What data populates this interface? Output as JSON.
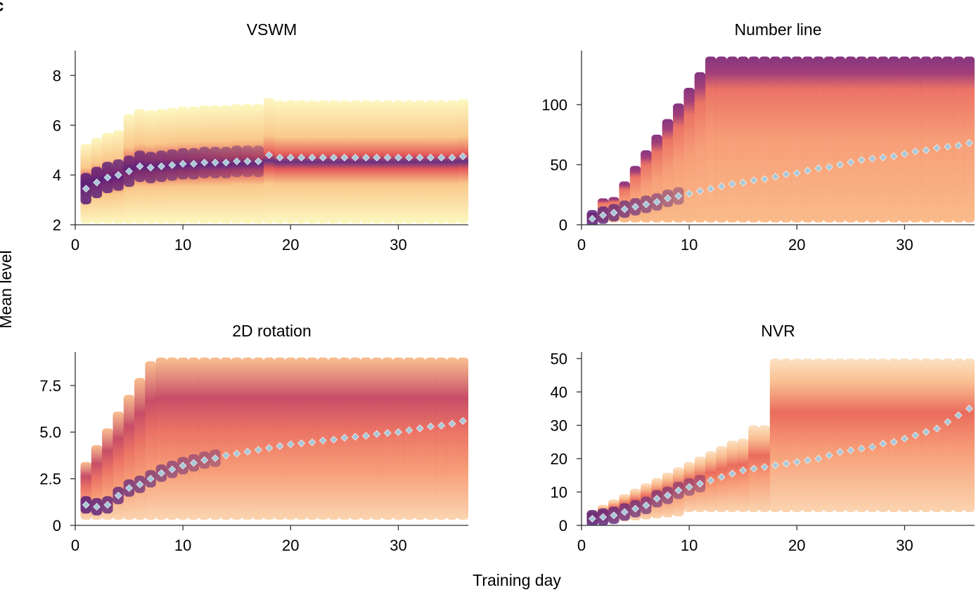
{
  "figure": {
    "panel_letter": "c",
    "ylabel": "Mean level",
    "xlabel": "Training day"
  },
  "colors": {
    "mean_marker": "#a8c8d8",
    "density_low": "#fcf6b4",
    "density_mid": "#f7834f",
    "density_high": "#5a1f7a",
    "density_peak": "#0d0829"
  },
  "chart_data": [
    {
      "type": "scatter",
      "title": "VSWM",
      "xlim": [
        0,
        36.5
      ],
      "ylim": [
        2,
        9
      ],
      "xticks": [
        0,
        10,
        20,
        30
      ],
      "yticks": [
        2,
        4,
        6,
        8
      ],
      "ytick_labels": [
        "2",
        "4",
        "6",
        "8"
      ],
      "series": [
        {
          "x": [
            1,
            2,
            3,
            4,
            5,
            6,
            7,
            8,
            9,
            10,
            11,
            12,
            13,
            14,
            15,
            16,
            17,
            18,
            19,
            20,
            21,
            22,
            23,
            24,
            25,
            26,
            27,
            28,
            29,
            30,
            31,
            32,
            33,
            34,
            35,
            36
          ],
          "values": [
            3.45,
            3.7,
            3.9,
            4.0,
            4.15,
            4.35,
            4.3,
            4.35,
            4.4,
            4.45,
            4.45,
            4.5,
            4.5,
            4.5,
            4.55,
            4.55,
            4.55,
            4.8,
            4.7,
            4.7,
            4.7,
            4.7,
            4.7,
            4.7,
            4.7,
            4.7,
            4.7,
            4.7,
            4.7,
            4.7,
            4.7,
            4.7,
            4.7,
            4.7,
            4.7,
            4.75
          ]
        }
      ]
    },
    {
      "type": "scatter",
      "title": "Number line",
      "xlim": [
        0,
        36.5
      ],
      "ylim": [
        0,
        145
      ],
      "xticks": [
        0,
        10,
        20,
        30
      ],
      "yticks": [
        0,
        50,
        100
      ],
      "ytick_labels": [
        "0",
        "50",
        "100"
      ],
      "series": [
        {
          "x": [
            1,
            2,
            3,
            4,
            5,
            6,
            7,
            8,
            9,
            10,
            11,
            12,
            13,
            14,
            15,
            16,
            17,
            18,
            19,
            20,
            21,
            22,
            23,
            24,
            25,
            26,
            27,
            28,
            29,
            30,
            31,
            32,
            33,
            34,
            35,
            36
          ],
          "values": [
            5,
            8,
            10,
            13,
            15,
            17,
            19,
            22,
            24,
            26,
            28,
            30,
            32,
            34,
            35,
            37,
            38,
            40,
            42,
            43,
            45,
            47,
            48,
            50,
            52,
            54,
            55,
            56,
            57,
            59,
            61,
            62,
            64,
            65,
            66,
            68
          ]
        }
      ]
    },
    {
      "type": "scatter",
      "title": "2D rotation",
      "xlim": [
        0,
        36.5
      ],
      "ylim": [
        0,
        9.3
      ],
      "xticks": [
        0,
        10,
        20,
        30
      ],
      "yticks": [
        0,
        2.5,
        5.0,
        7.5
      ],
      "ytick_labels": [
        "0",
        "2.5",
        "5.0",
        "7.5"
      ],
      "series": [
        {
          "x": [
            1,
            2,
            3,
            4,
            5,
            6,
            7,
            8,
            9,
            10,
            11,
            12,
            13,
            14,
            15,
            16,
            17,
            18,
            19,
            20,
            21,
            22,
            23,
            24,
            25,
            26,
            27,
            28,
            29,
            30,
            31,
            32,
            33,
            34,
            35,
            36
          ],
          "values": [
            1.1,
            1.0,
            1.1,
            1.6,
            2.0,
            2.2,
            2.5,
            2.8,
            3.0,
            3.2,
            3.35,
            3.5,
            3.6,
            3.75,
            3.85,
            3.95,
            4.05,
            4.15,
            4.25,
            4.35,
            4.4,
            4.45,
            4.55,
            4.6,
            4.7,
            4.75,
            4.8,
            4.9,
            4.95,
            5.0,
            5.1,
            5.2,
            5.3,
            5.35,
            5.45,
            5.6
          ]
        }
      ]
    },
    {
      "type": "scatter",
      "title": "NVR",
      "xlim": [
        0,
        36.5
      ],
      "ylim": [
        0,
        52
      ],
      "xticks": [
        0,
        10,
        20,
        30
      ],
      "yticks": [
        0,
        10,
        20,
        30,
        40,
        50
      ],
      "ytick_labels": [
        "0",
        "10",
        "20",
        "30",
        "40",
        "50"
      ],
      "series": [
        {
          "x": [
            1,
            2,
            3,
            4,
            5,
            6,
            7,
            8,
            9,
            10,
            11,
            12,
            13,
            14,
            15,
            16,
            17,
            18,
            19,
            20,
            21,
            22,
            23,
            24,
            25,
            26,
            27,
            28,
            29,
            30,
            31,
            32,
            33,
            34,
            35,
            36
          ],
          "values": [
            2,
            2.5,
            3,
            4,
            5,
            6,
            8,
            9,
            10.5,
            11.5,
            12.5,
            13.5,
            14.5,
            15.5,
            16.5,
            17,
            17.5,
            18,
            18.5,
            19,
            19.5,
            20,
            21,
            22,
            22.5,
            23,
            23.5,
            24.5,
            25,
            26,
            27,
            28,
            29,
            31,
            33,
            35
          ]
        }
      ]
    }
  ]
}
